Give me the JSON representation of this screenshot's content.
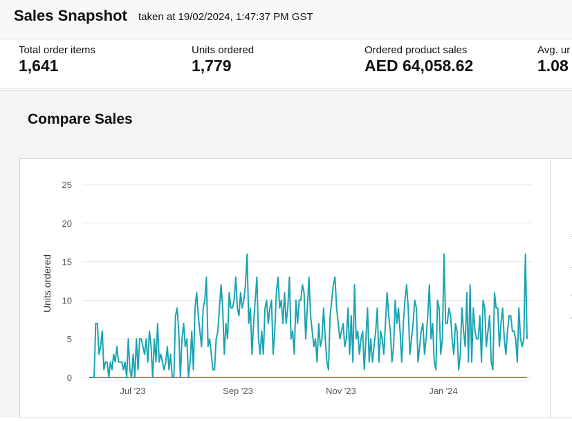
{
  "header": {
    "title": "Sales Snapshot",
    "taken": "taken at 19/02/2024, 1:47:37 PM GST"
  },
  "metrics": [
    {
      "label": "Total order items",
      "value": "1,641"
    },
    {
      "label": "Units ordered",
      "value": "1,779"
    },
    {
      "label": "Ordered product sales",
      "value": "AED 64,058.62"
    },
    {
      "label": "Avg. ur",
      "value": "1.08"
    }
  ],
  "compare": {
    "title": "Compare Sales"
  },
  "chart_data": {
    "type": "line",
    "ylabel": "Units ordered",
    "ylim": [
      0,
      25
    ],
    "y_ticks": [
      0,
      5,
      10,
      15,
      20,
      25
    ],
    "x_tick_labels": [
      "Jul '23",
      "Sep '23",
      "Nov '23",
      "Jan '24"
    ],
    "grid": true,
    "series": [
      {
        "color": "#1ba3b2",
        "values": [
          0,
          0,
          0,
          0,
          7,
          7,
          3,
          4,
          6,
          1,
          2,
          2,
          0,
          2,
          1,
          3,
          2,
          4,
          2,
          2,
          2,
          1,
          2,
          0,
          5,
          1,
          0,
          3,
          0,
          5,
          1,
          5,
          5,
          4,
          3,
          5,
          2,
          6,
          4,
          0,
          5,
          2,
          7,
          2,
          3,
          2,
          1,
          2,
          4,
          1,
          3,
          0,
          0,
          8,
          9,
          6,
          0,
          5,
          7,
          4,
          5,
          0,
          2,
          6,
          1,
          9,
          11,
          8,
          6,
          4,
          9,
          10,
          13,
          4,
          5,
          3,
          1,
          1,
          5,
          6,
          9,
          12,
          9,
          3,
          7,
          5,
          11,
          9,
          9,
          10,
          13,
          9,
          8,
          11,
          9,
          10,
          12,
          16,
          7,
          9,
          3,
          7,
          10,
          13,
          5,
          3,
          6,
          3,
          9,
          10,
          7,
          9,
          10,
          3,
          6,
          11,
          13,
          9,
          10,
          7,
          11,
          7,
          9,
          13,
          5,
          6,
          3,
          10,
          7,
          10,
          10,
          12,
          11,
          5,
          9,
          13,
          8,
          6,
          4,
          5,
          2,
          7,
          4,
          5,
          9,
          5,
          2,
          1,
          8,
          10,
          12,
          13,
          9,
          7,
          5,
          6,
          7,
          4,
          5,
          9,
          3,
          8,
          2,
          12,
          5,
          6,
          3,
          5,
          6,
          1,
          5,
          9,
          2,
          5,
          2,
          4,
          6,
          9,
          2,
          6,
          5,
          3,
          7,
          11,
          8,
          6,
          2,
          4,
          10,
          7,
          9,
          6,
          2,
          7,
          10,
          12,
          9,
          3,
          5,
          7,
          10,
          9,
          2,
          4,
          6,
          7,
          3,
          5,
          8,
          12,
          5,
          7,
          2,
          1,
          10,
          9,
          3,
          5,
          16,
          7,
          7,
          9,
          8,
          5,
          3,
          7,
          6,
          1,
          3,
          9,
          6,
          4,
          11,
          2,
          12,
          2,
          9,
          6,
          5,
          5,
          8,
          2,
          10,
          9,
          4,
          6,
          8,
          2,
          1,
          11,
          9,
          9,
          4,
          7,
          9,
          5,
          3,
          6,
          8,
          8,
          6,
          6,
          5,
          2,
          9,
          5,
          4,
          5,
          16,
          5
        ]
      },
      {
        "color": "#c4472a",
        "values": []
      }
    ]
  },
  "right_panel": {
    "marks": [
      "·",
      "·",
      "·",
      "·"
    ]
  }
}
